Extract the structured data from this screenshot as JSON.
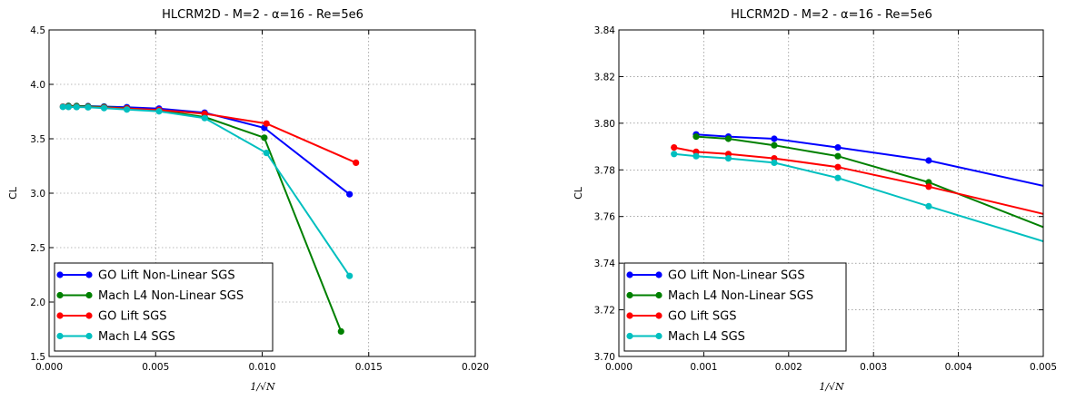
{
  "chart_data": [
    {
      "type": "line",
      "title": "HLCRM2D - M=2 - α=16 - Re=5e6",
      "xlabel": "1/√N",
      "ylabel": "CL",
      "xlim": [
        0.0,
        0.02
      ],
      "ylim": [
        1.5,
        4.5
      ],
      "xticks": [
        "0.000",
        "0.005",
        "0.010",
        "0.015",
        "0.020"
      ],
      "yticks": [
        "1.5",
        "2.0",
        "2.5",
        "3.0",
        "3.5",
        "4.0",
        "4.5"
      ],
      "grid": true,
      "legend_position": "lower-left",
      "series": [
        {
          "name": "GO Lift Non-Linear SGS",
          "color": "#0000ff",
          "x": [
            0.00091,
            0.00129,
            0.00183,
            0.00258,
            0.00365,
            0.00516,
            0.0073,
            0.0101,
            0.0141
          ],
          "y": [
            3.802,
            3.801,
            3.8,
            3.796,
            3.79,
            3.777,
            3.74,
            3.6,
            2.99
          ]
        },
        {
          "name": "Mach L4 Non-Linear SGS",
          "color": "#008000",
          "x": [
            0.00091,
            0.00129,
            0.00183,
            0.00258,
            0.00365,
            0.00516,
            0.0073,
            0.0101,
            0.0137
          ],
          "y": [
            3.801,
            3.8,
            3.797,
            3.792,
            3.78,
            3.759,
            3.7,
            3.51,
            1.73
          ]
        },
        {
          "name": "GO Lift SGS",
          "color": "#ff0000",
          "x": [
            0.00065,
            0.00091,
            0.00129,
            0.00183,
            0.00258,
            0.00365,
            0.00516,
            0.0073,
            0.0102,
            0.0144
          ],
          "y": [
            3.796,
            3.794,
            3.793,
            3.791,
            3.787,
            3.778,
            3.765,
            3.73,
            3.64,
            3.28
          ]
        },
        {
          "name": "Mach L4 SGS",
          "color": "#00bfbf",
          "x": [
            0.00065,
            0.00091,
            0.00129,
            0.00183,
            0.00258,
            0.00365,
            0.00516,
            0.0073,
            0.0102,
            0.0141
          ],
          "y": [
            3.793,
            3.792,
            3.791,
            3.789,
            3.782,
            3.769,
            3.752,
            3.69,
            3.37,
            2.24
          ]
        }
      ]
    },
    {
      "type": "line",
      "title": "HLCRM2D - M=2 - α=16 - Re=5e6",
      "xlabel": "1/√N",
      "ylabel": "CL",
      "xlim": [
        0.0,
        0.005
      ],
      "ylim": [
        3.7,
        3.85
      ],
      "xticks": [
        "0.000",
        "0.001",
        "0.002",
        "0.003",
        "0.004",
        "0.005"
      ],
      "yticks": [
        "3.70",
        "3.72",
        "3.74",
        "3.76",
        "3.78",
        "3.80",
        "3.82",
        "3.84"
      ],
      "grid": true,
      "legend_position": "lower-left",
      "series": [
        {
          "name": "GO Lift Non-Linear SGS",
          "color": "#0000ff",
          "x": [
            0.00091,
            0.00129,
            0.00183,
            0.00258,
            0.00365,
            0.00516
          ],
          "y": [
            3.802,
            3.801,
            3.8,
            3.796,
            3.79,
            3.777
          ]
        },
        {
          "name": "Mach L4 Non-Linear SGS",
          "color": "#008000",
          "x": [
            0.00091,
            0.00129,
            0.00183,
            0.00258,
            0.00365,
            0.00516
          ],
          "y": [
            3.801,
            3.8,
            3.797,
            3.792,
            3.78,
            3.757
          ]
        },
        {
          "name": "GO Lift SGS",
          "color": "#ff0000",
          "x": [
            0.00065,
            0.00091,
            0.00129,
            0.00183,
            0.00258,
            0.00365,
            0.00516
          ],
          "y": [
            3.796,
            3.794,
            3.793,
            3.791,
            3.787,
            3.778,
            3.764
          ]
        },
        {
          "name": "Mach L4 SGS",
          "color": "#00bfbf",
          "x": [
            0.00065,
            0.00091,
            0.00129,
            0.00183,
            0.00258,
            0.00365,
            0.00516
          ],
          "y": [
            3.793,
            3.792,
            3.791,
            3.789,
            3.782,
            3.769,
            3.751
          ]
        }
      ]
    }
  ]
}
